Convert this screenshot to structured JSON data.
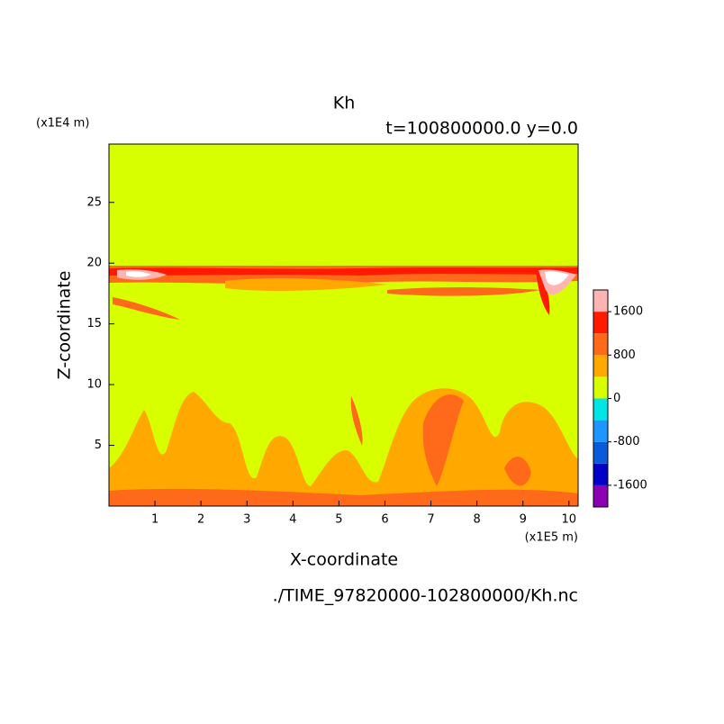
{
  "chart_data": {
    "type": "contour",
    "title": "Kh",
    "subtitle": "t=100800000.0 y=0.0",
    "y_unit": "(x1E4 m)",
    "x_unit": "(x1E5 m)",
    "xlabel": "X-coordinate",
    "ylabel": "Z-coordinate",
    "source": "./TIME_97820000-102800000/Kh.nc",
    "xlim": [
      0,
      10.2
    ],
    "xticks": [
      1,
      2,
      3,
      4,
      5,
      6,
      7,
      8,
      9,
      10
    ],
    "ylim": [
      0,
      29.8
    ],
    "yticks": [
      5,
      10,
      15,
      20,
      25
    ],
    "colorbar": {
      "lim": [
        -2000,
        2000
      ],
      "ticks": [
        -1600,
        -800,
        0,
        800,
        1600
      ],
      "colors": [
        "#8c00b4",
        "#0000c8",
        "#0a5adc",
        "#1e96ff",
        "#00e6e6",
        "#d7ff00",
        "#ffa800",
        "#ff6a1a",
        "#ff1a00",
        "#ffb4b4"
      ]
    }
  }
}
